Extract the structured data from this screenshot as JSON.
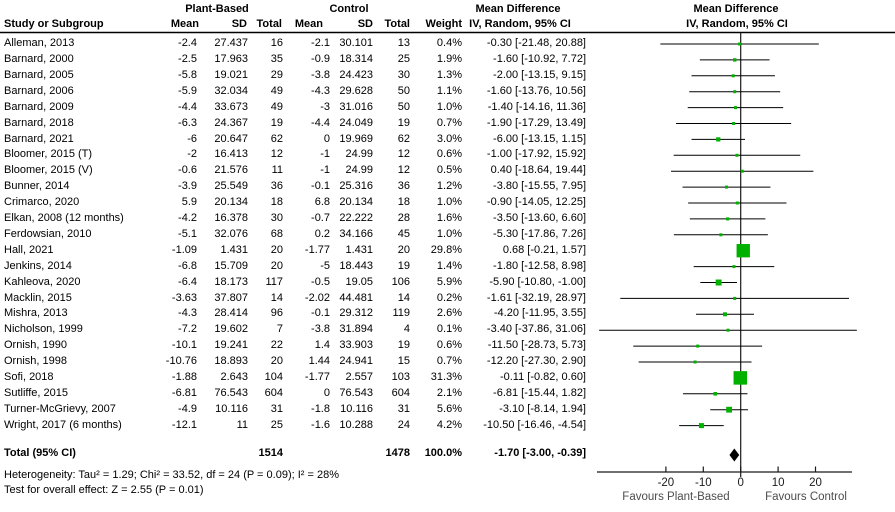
{
  "header": {
    "study_col": "Study or Subgroup",
    "group1": "Plant-Based",
    "group2": "Control",
    "mean": "Mean",
    "sd": "SD",
    "total": "Total",
    "weight": "Weight",
    "md_title": "Mean Difference",
    "md_subtitle": "IV, Random, 95% CI",
    "plot_title": "Mean Difference",
    "plot_subtitle": "IV, Random, 95% CI"
  },
  "colors": {
    "marker": "#00b100",
    "line": "#000000",
    "diamond": "#000000",
    "rule": "#000000",
    "axis": "#1a1a1a",
    "axis_text": "#1a1a1a",
    "favours_text": "#4d4d4d"
  },
  "chart_data": {
    "type": "forest",
    "effect_measure": "Mean Difference, IV, Random, 95% CI",
    "axis": {
      "ticks": [
        -20,
        -10,
        0,
        10,
        20
      ],
      "x_per_unit": 3.74,
      "x_zero": 740.7
    },
    "favours_left": "Favours Plant-Based",
    "favours_right": "Favours Control",
    "studies": [
      {
        "label": "Alleman, 2013",
        "m1": "-2.4",
        "sd1": "27.437",
        "n1": "16",
        "m2": "-2.1",
        "sd2": "30.101",
        "n2": "13",
        "weight": "0.4%",
        "md": "-0.30 [-21.48, 20.88]",
        "est": -0.3,
        "lo": -21.48,
        "hi": 20.88,
        "w": 0.4
      },
      {
        "label": "Barnard, 2000",
        "m1": "-2.5",
        "sd1": "17.963",
        "n1": "35",
        "m2": "-0.9",
        "sd2": "18.314",
        "n2": "25",
        "weight": "1.9%",
        "md": "-1.60 [-10.92, 7.72]",
        "est": -1.6,
        "lo": -10.92,
        "hi": 7.72,
        "w": 1.9
      },
      {
        "label": "Barnard, 2005",
        "m1": "-5.8",
        "sd1": "19.021",
        "n1": "29",
        "m2": "-3.8",
        "sd2": "24.423",
        "n2": "30",
        "weight": "1.3%",
        "md": "-2.00 [-13.15, 9.15]",
        "est": -2.0,
        "lo": -13.15,
        "hi": 9.15,
        "w": 1.3
      },
      {
        "label": "Barnard, 2006",
        "m1": "-5.9",
        "sd1": "32.034",
        "n1": "49",
        "m2": "-4.3",
        "sd2": "29.628",
        "n2": "50",
        "weight": "1.1%",
        "md": "-1.60 [-13.76, 10.56]",
        "est": -1.6,
        "lo": -13.76,
        "hi": 10.56,
        "w": 1.1
      },
      {
        "label": "Barnard, 2009",
        "m1": "-4.4",
        "sd1": "33.673",
        "n1": "49",
        "m2": "-3",
        "sd2": "31.016",
        "n2": "50",
        "weight": "1.0%",
        "md": "-1.40 [-14.16, 11.36]",
        "est": -1.4,
        "lo": -14.16,
        "hi": 11.36,
        "w": 1.0
      },
      {
        "label": "Barnard, 2018",
        "m1": "-6.3",
        "sd1": "24.367",
        "n1": "19",
        "m2": "-4.4",
        "sd2": "24.049",
        "n2": "19",
        "weight": "0.7%",
        "md": "-1.90 [-17.29, 13.49]",
        "est": -1.9,
        "lo": -17.29,
        "hi": 13.49,
        "w": 0.7
      },
      {
        "label": "Barnard, 2021",
        "m1": "-6",
        "sd1": "20.647",
        "n1": "62",
        "m2": "0",
        "sd2": "19.969",
        "n2": "62",
        "weight": "3.0%",
        "md": "-6.00 [-13.15, 1.15]",
        "est": -6.0,
        "lo": -13.15,
        "hi": 1.15,
        "w": 3.0
      },
      {
        "label": "Bloomer, 2015 (T)",
        "m1": "-2",
        "sd1": "16.413",
        "n1": "12",
        "m2": "-1",
        "sd2": "24.99",
        "n2": "12",
        "weight": "0.6%",
        "md": "-1.00 [-17.92, 15.92]",
        "est": -1.0,
        "lo": -17.92,
        "hi": 15.92,
        "w": 0.6
      },
      {
        "label": "Bloomer, 2015 (V)",
        "m1": "-0.6",
        "sd1": "21.576",
        "n1": "11",
        "m2": "-1",
        "sd2": "24.99",
        "n2": "12",
        "weight": "0.5%",
        "md": "0.40 [-18.64, 19.44]",
        "est": 0.4,
        "lo": -18.64,
        "hi": 19.44,
        "w": 0.5
      },
      {
        "label": "Bunner, 2014",
        "m1": "-3.9",
        "sd1": "25.549",
        "n1": "36",
        "m2": "-0.1",
        "sd2": "25.316",
        "n2": "36",
        "weight": "1.2%",
        "md": "-3.80 [-15.55, 7.95]",
        "est": -3.8,
        "lo": -15.55,
        "hi": 7.95,
        "w": 1.2
      },
      {
        "label": "Crimarco, 2020",
        "m1": "5.9",
        "sd1": "20.134",
        "n1": "18",
        "m2": "6.8",
        "sd2": "20.134",
        "n2": "18",
        "weight": "1.0%",
        "md": "-0.90 [-14.05, 12.25]",
        "est": -0.9,
        "lo": -14.05,
        "hi": 12.25,
        "w": 1.0
      },
      {
        "label": "Elkan, 2008 (12 months)",
        "m1": "-4.2",
        "sd1": "16.378",
        "n1": "30",
        "m2": "-0.7",
        "sd2": "22.222",
        "n2": "28",
        "weight": "1.6%",
        "md": "-3.50 [-13.60, 6.60]",
        "est": -3.5,
        "lo": -13.6,
        "hi": 6.6,
        "w": 1.6
      },
      {
        "label": "Ferdowsian, 2010",
        "m1": "-5.1",
        "sd1": "32.076",
        "n1": "68",
        "m2": "0.2",
        "sd2": "34.166",
        "n2": "45",
        "weight": "1.0%",
        "md": "-5.30 [-17.86, 7.26]",
        "est": -5.3,
        "lo": -17.86,
        "hi": 7.26,
        "w": 1.0
      },
      {
        "label": "Hall, 2021",
        "m1": "-1.09",
        "sd1": "1.431",
        "n1": "20",
        "m2": "-1.77",
        "sd2": "1.431",
        "n2": "20",
        "weight": "29.8%",
        "md": "0.68 [-0.21, 1.57]",
        "est": 0.68,
        "lo": -0.21,
        "hi": 1.57,
        "w": 29.8
      },
      {
        "label": "Jenkins, 2014",
        "m1": "-6.8",
        "sd1": "15.709",
        "n1": "20",
        "m2": "-5",
        "sd2": "18.443",
        "n2": "19",
        "weight": "1.4%",
        "md": "-1.80 [-12.58, 8.98]",
        "est": -1.8,
        "lo": -12.58,
        "hi": 8.98,
        "w": 1.4
      },
      {
        "label": "Kahleova, 2020",
        "m1": "-6.4",
        "sd1": "18.173",
        "n1": "117",
        "m2": "-0.5",
        "sd2": "19.05",
        "n2": "106",
        "weight": "5.9%",
        "md": "-5.90 [-10.80, -1.00]",
        "est": -5.9,
        "lo": -10.8,
        "hi": -1.0,
        "w": 5.9
      },
      {
        "label": "Macklin, 2015",
        "m1": "-3.63",
        "sd1": "37.807",
        "n1": "14",
        "m2": "-2.02",
        "sd2": "44.481",
        "n2": "14",
        "weight": "0.2%",
        "md": "-1.61 [-32.19, 28.97]",
        "est": -1.61,
        "lo": -32.19,
        "hi": 28.97,
        "w": 0.2
      },
      {
        "label": "Mishra, 2013",
        "m1": "-4.3",
        "sd1": "28.414",
        "n1": "96",
        "m2": "-0.1",
        "sd2": "29.312",
        "n2": "119",
        "weight": "2.6%",
        "md": "-4.20 [-11.95, 3.55]",
        "est": -4.2,
        "lo": -11.95,
        "hi": 3.55,
        "w": 2.6
      },
      {
        "label": "Nicholson, 1999",
        "m1": "-7.2",
        "sd1": "19.602",
        "n1": "7",
        "m2": "-3.8",
        "sd2": "31.894",
        "n2": "4",
        "weight": "0.1%",
        "md": "-3.40 [-37.86, 31.06]",
        "est": -3.4,
        "lo": -37.86,
        "hi": 31.06,
        "w": 0.1
      },
      {
        "label": "Ornish, 1990",
        "m1": "-10.1",
        "sd1": "19.241",
        "n1": "22",
        "m2": "1.4",
        "sd2": "33.903",
        "n2": "19",
        "weight": "0.6%",
        "md": "-11.50 [-28.73, 5.73]",
        "est": -11.5,
        "lo": -28.73,
        "hi": 5.73,
        "w": 0.6
      },
      {
        "label": "Ornish, 1998",
        "m1": "-10.76",
        "sd1": "18.893",
        "n1": "20",
        "m2": "1.44",
        "sd2": "24.941",
        "n2": "15",
        "weight": "0.7%",
        "md": "-12.20 [-27.30, 2.90]",
        "est": -12.2,
        "lo": -27.3,
        "hi": 2.9,
        "w": 0.7
      },
      {
        "label": "Sofi, 2018",
        "m1": "-1.88",
        "sd1": "2.643",
        "n1": "104",
        "m2": "-1.77",
        "sd2": "2.557",
        "n2": "103",
        "weight": "31.3%",
        "md": "-0.11 [-0.82, 0.60]",
        "est": -0.11,
        "lo": -0.82,
        "hi": 0.6,
        "w": 31.3
      },
      {
        "label": "Sutliffe, 2015",
        "m1": "-6.81",
        "sd1": "76.543",
        "n1": "604",
        "m2": "0",
        "sd2": "76.543",
        "n2": "604",
        "weight": "2.1%",
        "md": "-6.81 [-15.44, 1.82]",
        "est": -6.81,
        "lo": -15.44,
        "hi": 1.82,
        "w": 2.1
      },
      {
        "label": "Turner-McGrievy, 2007",
        "m1": "-4.9",
        "sd1": "10.116",
        "n1": "31",
        "m2": "-1.8",
        "sd2": "10.116",
        "n2": "31",
        "weight": "5.6%",
        "md": "-3.10 [-8.14, 1.94]",
        "est": -3.1,
        "lo": -8.14,
        "hi": 1.94,
        "w": 5.6
      },
      {
        "label": "Wright, 2017 (6 months)",
        "m1": "-12.1",
        "sd1": "11",
        "n1": "25",
        "m2": "-1.6",
        "sd2": "10.288",
        "n2": "24",
        "weight": "4.2%",
        "md": "-10.50 [-16.46, -4.54]",
        "est": -10.5,
        "lo": -16.46,
        "hi": -4.54,
        "w": 4.2
      }
    ],
    "total": {
      "label": "Total (95% CI)",
      "n1": "1514",
      "n2": "1478",
      "weight": "100.0%",
      "md": "-1.70 [-3.00, -0.39]",
      "est": -1.7,
      "lo": -3.0,
      "hi": -0.39
    },
    "heterogeneity": "Heterogeneity: Tau² = 1.29; Chi² = 33.52, df = 24 (P = 0.09); I² = 28%",
    "overall_effect": "Test for overall effect: Z = 2.55 (P = 0.01)"
  }
}
